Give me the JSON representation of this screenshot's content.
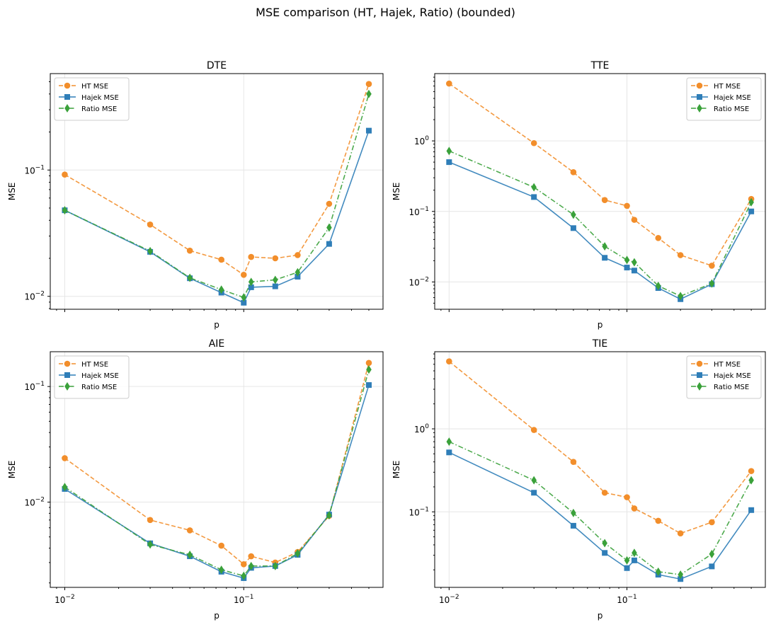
{
  "suptitle": "MSE comparison (HT, Hajek, Ratio) (bounded)",
  "colors": {
    "ht": "#f28e2b",
    "hajek": "#2f7eb8",
    "ratio": "#3aa13a"
  },
  "chart_data": [
    {
      "type": "line",
      "title": "DTE",
      "xlabel": "p",
      "ylabel": "MSE",
      "xscale": "log",
      "yscale": "log",
      "xlim": [
        0.0083,
        0.6
      ],
      "ylim": [
        0.0079,
        0.58
      ],
      "yticks": [
        {
          "value": 0.01,
          "base": "10",
          "exp": "−2"
        },
        {
          "value": 0.1,
          "base": "10",
          "exp": "−1"
        }
      ],
      "xticks": [],
      "legend": "upper-left",
      "x": [
        0.01,
        0.03,
        0.05,
        0.075,
        0.1,
        0.11,
        0.15,
        0.2,
        0.3,
        0.5
      ],
      "series": [
        {
          "name": "HT MSE",
          "key": "ht",
          "marker": "circle",
          "dash": "dashed",
          "values": [
            0.092,
            0.037,
            0.023,
            0.0195,
            0.0148,
            0.0205,
            0.02,
            0.0212,
            0.054,
            0.48
          ]
        },
        {
          "name": "Hajek MSE",
          "key": "hajek",
          "marker": "square",
          "dash": "solid",
          "values": [
            0.048,
            0.0225,
            0.0139,
            0.0107,
            0.0089,
            0.0118,
            0.012,
            0.0143,
            0.026,
            0.205
          ]
        },
        {
          "name": "Ratio MSE",
          "key": "ratio",
          "marker": "diamond",
          "dash": "dashdot",
          "values": [
            0.048,
            0.0228,
            0.014,
            0.0113,
            0.0098,
            0.013,
            0.0135,
            0.0155,
            0.035,
            0.4
          ]
        }
      ]
    },
    {
      "type": "line",
      "title": "TTE",
      "xlabel": "p",
      "ylabel": "MSE",
      "xscale": "log",
      "yscale": "log",
      "xlim": [
        0.0083,
        0.6
      ],
      "ylim": [
        0.0041,
        9.0
      ],
      "yticks": [
        {
          "value": 0.01,
          "base": "10",
          "exp": "−2"
        },
        {
          "value": 0.1,
          "base": "10",
          "exp": "−1"
        },
        {
          "value": 1,
          "base": "10",
          "exp": "0"
        }
      ],
      "xticks": [],
      "legend": "upper-right",
      "x": [
        0.01,
        0.03,
        0.05,
        0.075,
        0.1,
        0.11,
        0.15,
        0.2,
        0.3,
        0.5
      ],
      "series": [
        {
          "name": "HT MSE",
          "key": "ht",
          "marker": "circle",
          "dash": "dashed",
          "values": [
            6.5,
            0.93,
            0.36,
            0.145,
            0.12,
            0.076,
            0.042,
            0.024,
            0.017,
            0.15
          ]
        },
        {
          "name": "Hajek MSE",
          "key": "hajek",
          "marker": "square",
          "dash": "solid",
          "values": [
            0.5,
            0.16,
            0.058,
            0.022,
            0.016,
            0.0145,
            0.0082,
            0.0057,
            0.0093,
            0.1
          ]
        },
        {
          "name": "Ratio MSE",
          "key": "ratio",
          "marker": "diamond",
          "dash": "dashdot",
          "values": [
            0.72,
            0.22,
            0.09,
            0.032,
            0.0205,
            0.019,
            0.0088,
            0.0063,
            0.0095,
            0.135
          ]
        }
      ]
    },
    {
      "type": "line",
      "title": "AIE",
      "xlabel": "p",
      "ylabel": "MSE",
      "xscale": "log",
      "yscale": "log",
      "xlim": [
        0.0083,
        0.6
      ],
      "ylim": [
        0.00183,
        0.2
      ],
      "yticks": [
        {
          "value": 0.01,
          "base": "10",
          "exp": "−2"
        },
        {
          "value": 0.1,
          "base": "10",
          "exp": "−1"
        }
      ],
      "xticks": [
        {
          "value": 0.01,
          "base": "10",
          "exp": "−2"
        },
        {
          "value": 0.1,
          "base": "10",
          "exp": "−1"
        }
      ],
      "legend": "upper-left",
      "x": [
        0.01,
        0.03,
        0.05,
        0.075,
        0.1,
        0.11,
        0.15,
        0.2,
        0.3,
        0.5
      ],
      "series": [
        {
          "name": "HT MSE",
          "key": "ht",
          "marker": "circle",
          "dash": "dashed",
          "values": [
            0.024,
            0.007,
            0.0057,
            0.0042,
            0.0029,
            0.0034,
            0.003,
            0.0037,
            0.0076,
            0.16
          ]
        },
        {
          "name": "Hajek MSE",
          "key": "hajek",
          "marker": "square",
          "dash": "solid",
          "values": [
            0.013,
            0.0044,
            0.0034,
            0.0025,
            0.0022,
            0.0027,
            0.0028,
            0.0035,
            0.0078,
            0.103
          ]
        },
        {
          "name": "Ratio MSE",
          "key": "ratio",
          "marker": "diamond",
          "dash": "dashdot",
          "values": [
            0.0135,
            0.0043,
            0.0035,
            0.0026,
            0.0023,
            0.0028,
            0.0028,
            0.0036,
            0.0077,
            0.14
          ]
        }
      ]
    },
    {
      "type": "line",
      "title": "TIE",
      "xlabel": "p",
      "ylabel": "MSE",
      "xscale": "log",
      "yscale": "log",
      "xlim": [
        0.0083,
        0.6
      ],
      "ylim": [
        0.0123,
        8.5
      ],
      "yticks": [
        {
          "value": 0.1,
          "base": "10",
          "exp": "−1"
        },
        {
          "value": 1,
          "base": "10",
          "exp": "0"
        }
      ],
      "xticks": [
        {
          "value": 0.01,
          "base": "10",
          "exp": "−2"
        },
        {
          "value": 0.1,
          "base": "10",
          "exp": "−1"
        }
      ],
      "legend": "upper-right",
      "x": [
        0.01,
        0.03,
        0.05,
        0.075,
        0.1,
        0.11,
        0.15,
        0.2,
        0.3,
        0.5
      ],
      "series": [
        {
          "name": "HT MSE",
          "key": "ht",
          "marker": "circle",
          "dash": "dashed",
          "values": [
            6.5,
            0.97,
            0.4,
            0.17,
            0.15,
            0.11,
            0.078,
            0.055,
            0.075,
            0.31
          ]
        },
        {
          "name": "Hajek MSE",
          "key": "hajek",
          "marker": "square",
          "dash": "solid",
          "values": [
            0.52,
            0.17,
            0.068,
            0.032,
            0.021,
            0.026,
            0.0175,
            0.0155,
            0.022,
            0.105
          ]
        },
        {
          "name": "Ratio MSE",
          "key": "ratio",
          "marker": "diamond",
          "dash": "dashdot",
          "values": [
            0.7,
            0.24,
            0.097,
            0.042,
            0.026,
            0.032,
            0.019,
            0.0175,
            0.031,
            0.24
          ]
        }
      ]
    }
  ]
}
